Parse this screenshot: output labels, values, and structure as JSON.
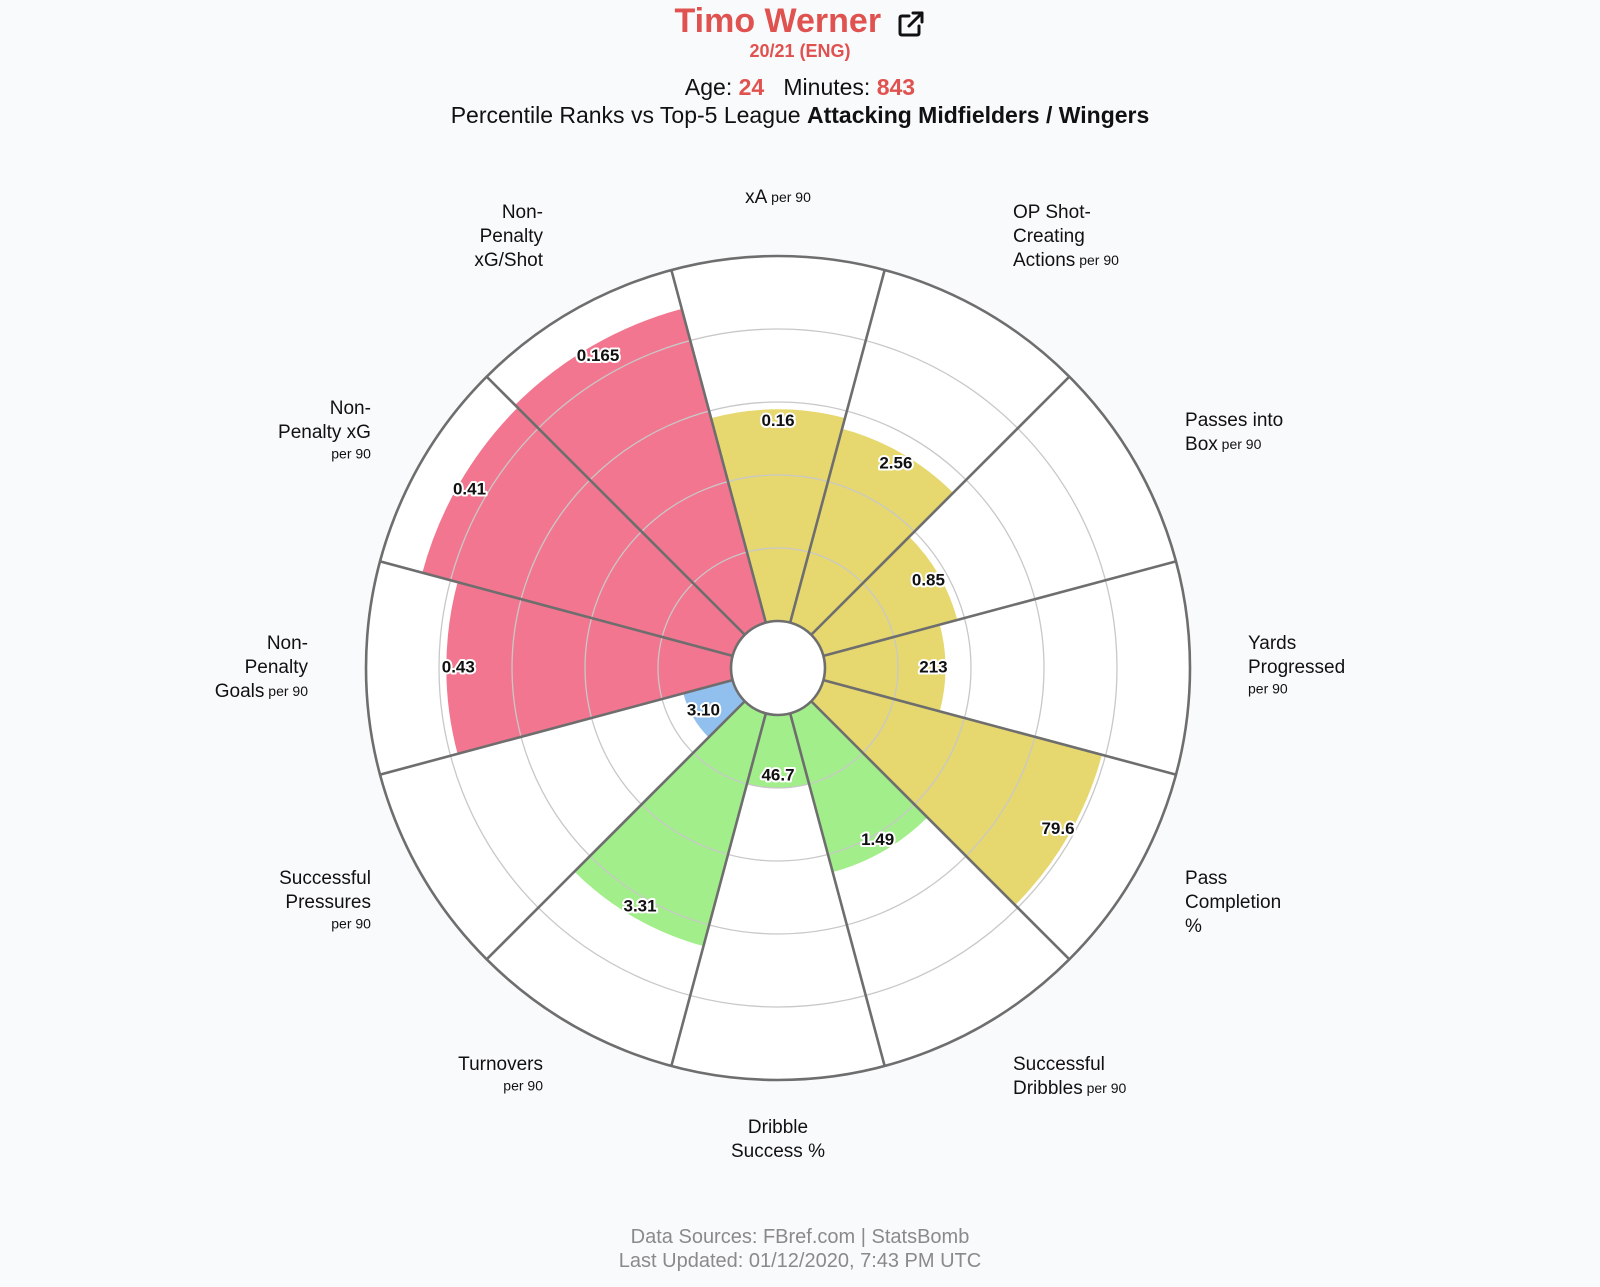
{
  "header": {
    "player_name": "Timo Werner",
    "season": "20/21 (ENG)",
    "age_label": "Age:",
    "age_value": "24",
    "minutes_label": "Minutes:",
    "minutes_value": "843",
    "percentile_prefix": "Percentile Ranks vs Top-5 League",
    "percentile_group": "Attacking Midfielders / Wingers",
    "link_icon": "external-link-icon"
  },
  "footer": {
    "sources": "Data Sources: FBref.com | StatsBomb",
    "updated": "Last Updated: 01/12/2020, 7:43 PM UTC"
  },
  "colors": {
    "attacking": "#f2768f",
    "creative": "#e6d86f",
    "possession": "#a2ee8b",
    "defending": "#91bfee",
    "title": "#e0524f",
    "grid": "#c8c8c8",
    "spoke": "#6e6e6e"
  },
  "chart_data": {
    "type": "polar-bar",
    "rlim": [
      0,
      100
    ],
    "rings": [
      20,
      40,
      60,
      80,
      100
    ],
    "categories": [
      {
        "label_lines": [
          "Non-",
          "Penalty",
          "Goals"
        ],
        "suffix": "per 90",
        "value_label": "0.43",
        "percentile": 78,
        "group": "attacking"
      },
      {
        "label_lines": [
          "Non-",
          "Penalty xG"
        ],
        "suffix": "per 90",
        "value_label": "0.41",
        "percentile": 88,
        "group": "attacking"
      },
      {
        "label_lines": [
          "Non-",
          "Penalty",
          "xG/Shot"
        ],
        "suffix": "",
        "value_label": "0.165",
        "percentile": 89,
        "group": "attacking"
      },
      {
        "label_lines": [
          "xA"
        ],
        "suffix": "per 90",
        "value_label": "0.16",
        "percentile": 58,
        "group": "creative"
      },
      {
        "label_lines": [
          "OP Shot-",
          "Creating",
          "Actions"
        ],
        "suffix": "per 90",
        "value_label": "2.56",
        "percentile": 55,
        "group": "creative"
      },
      {
        "label_lines": [
          "Passes into",
          "Box"
        ],
        "suffix": "per 90",
        "value_label": "0.85",
        "percentile": 38,
        "group": "creative"
      },
      {
        "label_lines": [
          "Yards",
          "Progressed"
        ],
        "suffix": "per 90",
        "value_label": "213",
        "percentile": 33,
        "group": "creative"
      },
      {
        "label_lines": [
          "Pass",
          "Completion",
          "%"
        ],
        "suffix": "",
        "value_label": "79.6",
        "percentile": 79,
        "group": "creative"
      },
      {
        "label_lines": [
          "Successful",
          "Dribbles"
        ],
        "suffix": "per 90",
        "value_label": "1.49",
        "percentile": 45,
        "group": "possession"
      },
      {
        "label_lines": [
          "Dribble",
          "Success %"
        ],
        "suffix": "",
        "value_label": "46.7",
        "percentile": 20,
        "group": "possession"
      },
      {
        "label_lines": [
          "Turnovers"
        ],
        "suffix": "per 90",
        "value_label": "3.31",
        "percentile": 66,
        "group": "possession"
      },
      {
        "label_lines": [
          "Successful",
          "Pressures"
        ],
        "suffix": "per 90",
        "value_label": "3.10",
        "percentile": 14,
        "group": "defending"
      }
    ]
  }
}
